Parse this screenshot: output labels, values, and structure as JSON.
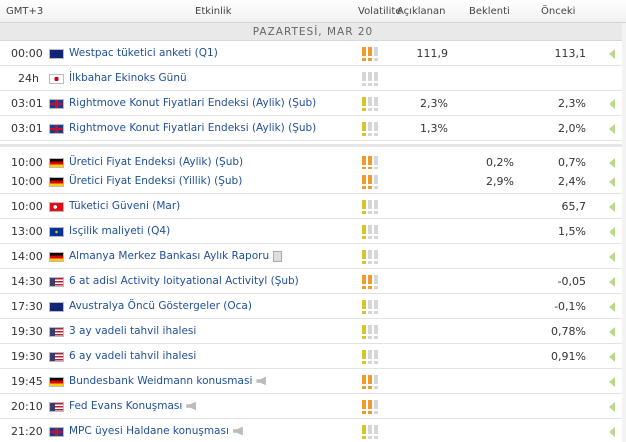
{
  "header": {
    "timezone": "GMT+3",
    "event": "Etkinlik",
    "volatility": "Volatilite",
    "actual": "Açıklanan",
    "forecast": "Beklenti",
    "previous": "Önceki"
  },
  "day_label": "PAZARTESİ, MAR 20",
  "colors": {
    "vol_orange": "#f29a2e",
    "vol_yellow": "#d9c42a",
    "vol_grey": "#d6d6d6",
    "link_blue": "#1f4f9a",
    "arrow_green": "#b8d98a"
  },
  "rows": [
    {
      "time": "00:00",
      "country": "NZ",
      "flag_icon": "new-zealand-flag-icon",
      "event": "Westpac tüketici anketi (Q1)",
      "volatility": 2,
      "actual": "111,9",
      "forecast": "",
      "previous": "113,1",
      "extra": ""
    },
    {
      "time": "24h",
      "country": "JP",
      "flag_icon": "japan-flag-icon",
      "event": "İlkbahar Ekinoks Günü",
      "volatility": 0,
      "actual": "",
      "forecast": "",
      "previous": "",
      "extra": ""
    },
    {
      "time": "03:01",
      "country": "GB",
      "flag_icon": "uk-flag-icon",
      "event": "Rightmove Konut Fiyatlari Endeksi (Aylik) (Şub)",
      "volatility": 1,
      "actual": "2,3%",
      "forecast": "",
      "previous": "2,3%",
      "extra": ""
    },
    {
      "time": "03:01",
      "country": "GB",
      "flag_icon": "uk-flag-icon",
      "event": "Rightmove Konut Fiyatlari Endeksi (Aylik) (Şub)",
      "volatility": 1,
      "actual": "1,3%",
      "forecast": "",
      "previous": "2,0%",
      "extra": ""
    },
    {
      "time": "10:00",
      "country": "DE",
      "flag_icon": "germany-flag-icon",
      "event": "Üretici Fiyat Endeksi (Aylik) (Şub)",
      "volatility": 2,
      "actual": "",
      "forecast": "0,2%",
      "previous": "0,7%",
      "extra": ""
    },
    {
      "time": "10:00",
      "country": "DE",
      "flag_icon": "germany-flag-icon",
      "event": "Üretici Fiyat Endeksi (Yillik) (Şub)",
      "volatility": 2,
      "actual": "",
      "forecast": "2,9%",
      "previous": "2,4%",
      "extra": ""
    },
    {
      "time": "10:00",
      "country": "TR",
      "flag_icon": "turkey-flag-icon",
      "event": "Tüketici Güveni (Mar)",
      "volatility": 1,
      "actual": "",
      "forecast": "",
      "previous": "65,7",
      "extra": ""
    },
    {
      "time": "13:00",
      "country": "EU",
      "flag_icon": "eu-flag-icon",
      "event": "Isçilik maliyeti (Q4)",
      "volatility": 1,
      "actual": "",
      "forecast": "",
      "previous": "1,5%",
      "extra": ""
    },
    {
      "time": "14:00",
      "country": "DE",
      "flag_icon": "germany-flag-icon",
      "event": "Almanya Merkez Bankası Aylık Raporu",
      "volatility": 1,
      "actual": "",
      "forecast": "",
      "previous": "",
      "extra": "doc"
    },
    {
      "time": "14:30",
      "country": "US",
      "flag_icon": "usa-flag-icon",
      "event": "6 at adisl Activity loityational Activityl (Şub)",
      "volatility": 2,
      "actual": "",
      "forecast": "",
      "previous": "-0,05",
      "extra": ""
    },
    {
      "time": "17:30",
      "country": "AU",
      "flag_icon": "australia-flag-icon",
      "event": "Avustralya Öncü Göstergeler (Oca)",
      "volatility": 1,
      "actual": "",
      "forecast": "",
      "previous": "-0,1%",
      "extra": ""
    },
    {
      "time": "19:30",
      "country": "US",
      "flag_icon": "usa-flag-icon",
      "event": "3 ay vadeli tahvil ihalesi",
      "volatility": 1,
      "actual": "",
      "forecast": "",
      "previous": "0,78%",
      "extra": ""
    },
    {
      "time": "19:30",
      "country": "US",
      "flag_icon": "usa-flag-icon",
      "event": "6 ay vadeli tahvil ihalesi",
      "volatility": 1,
      "actual": "",
      "forecast": "",
      "previous": "0,91%",
      "extra": ""
    },
    {
      "time": "19:45",
      "country": "DE",
      "flag_icon": "germany-flag-icon",
      "event": "Bundesbank Weidmann konusmasi",
      "volatility": 2,
      "actual": "",
      "forecast": "",
      "previous": "",
      "extra": "speech"
    },
    {
      "time": "20:10",
      "country": "US",
      "flag_icon": "usa-flag-icon",
      "event": "Fed Evans Konuşması",
      "volatility": 2,
      "actual": "",
      "forecast": "",
      "previous": "",
      "extra": "speech"
    },
    {
      "time": "21:20",
      "country": "GB",
      "flag_icon": "uk-flag-icon",
      "event": "MPC üyesi Haldane konuşması",
      "volatility": 1,
      "actual": "",
      "forecast": "",
      "previous": "",
      "extra": "speech"
    }
  ]
}
